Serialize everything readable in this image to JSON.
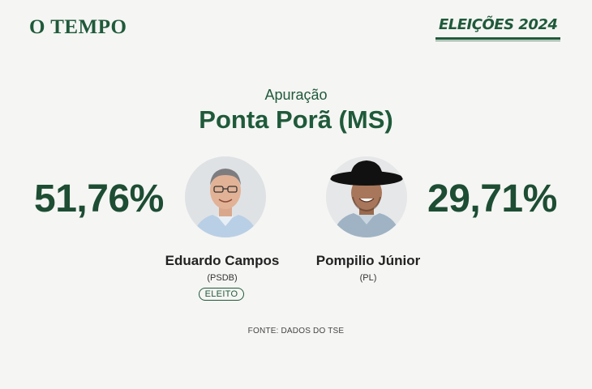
{
  "header": {
    "logo_text": "O TEMPO",
    "badge_text": "ELEIÇÕES 2024"
  },
  "result": {
    "subtitle": "Apuração",
    "city": "Ponta Porã (MS)",
    "candidates": [
      {
        "percent": "51,76%",
        "name": "Eduardo Campos",
        "party": "(PSDB)",
        "status": "ELEITO"
      },
      {
        "percent": "29,71%",
        "name": "Pompilio Júnior",
        "party": "(PL)"
      }
    ],
    "source": "FONTE: DADOS DO TSE"
  },
  "colors": {
    "brand_green": "#1f5a3a",
    "background": "#f5f5f3"
  },
  "icons": [
    "candidate-photo-eduardo-campos",
    "candidate-photo-pompilio-junior"
  ]
}
